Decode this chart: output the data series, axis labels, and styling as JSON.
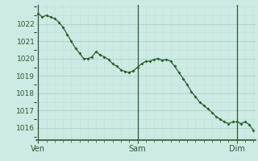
{
  "background_color": "#ceeae4",
  "grid_color_major": "#a8c8c0",
  "grid_color_minor": "#bee0d8",
  "line_color": "#2d6030",
  "marker_color": "#2d6030",
  "yticks": [
    1016,
    1017,
    1018,
    1019,
    1020,
    1021,
    1022
  ],
  "ylim": [
    1015.3,
    1023.1
  ],
  "xlim": [
    -0.5,
    52.5
  ],
  "xtick_labels": [
    "Ven",
    "Sam",
    "Dim"
  ],
  "xtick_positions": [
    0,
    24,
    48
  ],
  "vline_color": "#2d5a2d",
  "y_values": [
    1022.6,
    1022.4,
    1022.5,
    1022.4,
    1022.3,
    1022.1,
    1021.8,
    1021.4,
    1021.0,
    1020.6,
    1020.3,
    1020.0,
    1020.0,
    1020.1,
    1020.4,
    1020.2,
    1020.1,
    1019.95,
    1019.7,
    1019.55,
    1019.35,
    1019.25,
    1019.2,
    1019.3,
    1019.5,
    1019.7,
    1019.85,
    1019.85,
    1019.95,
    1020.0,
    1019.9,
    1019.95,
    1019.85,
    1019.55,
    1019.2,
    1018.85,
    1018.5,
    1018.1,
    1017.8,
    1017.5,
    1017.3,
    1017.1,
    1016.9,
    1016.65,
    1016.5,
    1016.35,
    1016.25,
    1016.35,
    1016.35,
    1016.25,
    1016.35,
    1016.2,
    1015.85
  ]
}
